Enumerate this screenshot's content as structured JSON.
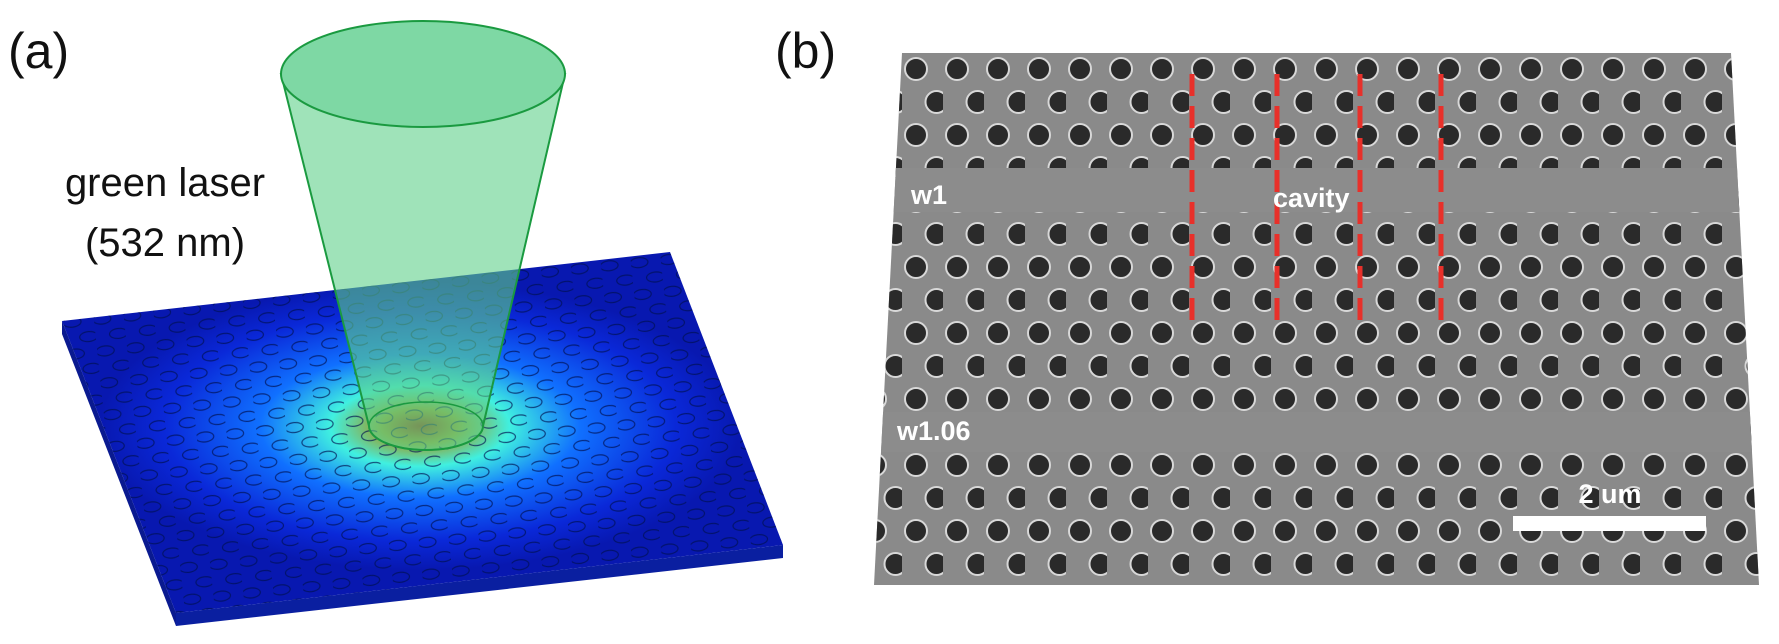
{
  "panel_a": {
    "label": "(a)",
    "laser_line1": "green laser",
    "laser_line2": "(532 nm)"
  },
  "panel_b": {
    "label": "(b)",
    "waveguide_top": "w1",
    "cavity": "cavity",
    "waveguide_bottom": "w1.06",
    "scale_bar": "2 um"
  }
}
